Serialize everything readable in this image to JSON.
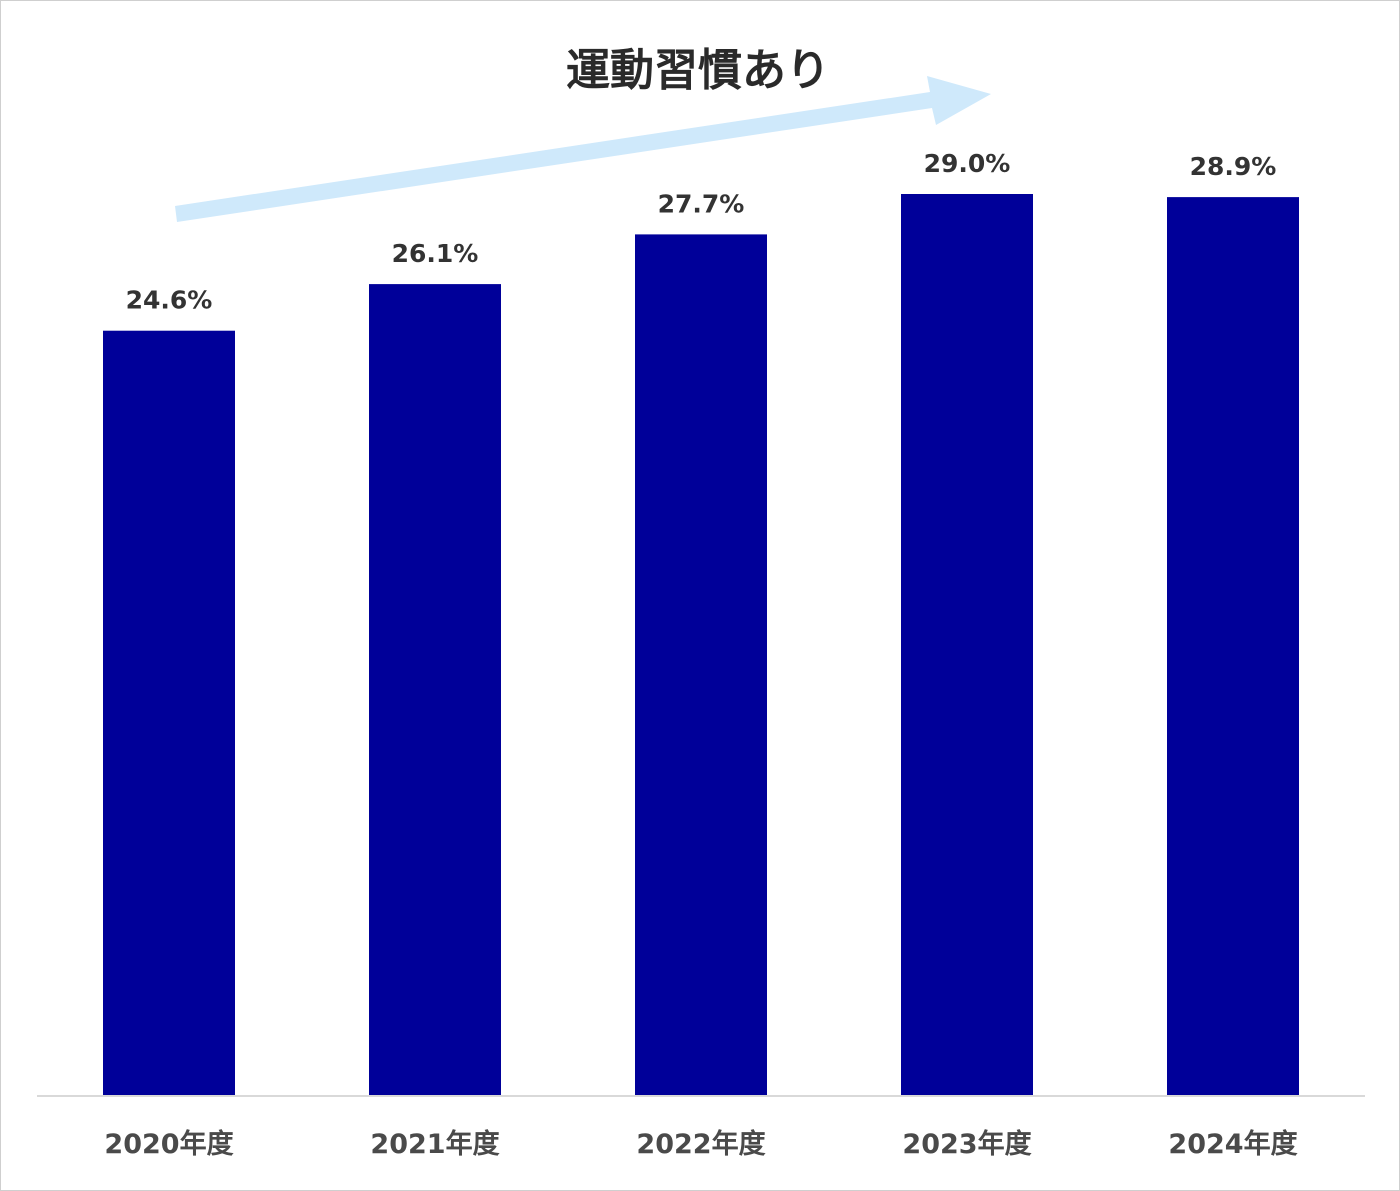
{
  "chart_data": {
    "type": "bar",
    "title": "",
    "annotation": "運動習慣あり",
    "categories": [
      "2020年度",
      "2021年度",
      "2022年度",
      "2023年度",
      "2024年度"
    ],
    "values": [
      24.6,
      26.1,
      27.7,
      29.0,
      28.9
    ],
    "value_labels": [
      "24.6%",
      "26.1%",
      "27.7%",
      "29.0%",
      "28.9%"
    ],
    "unit": "%",
    "xlabel": "",
    "ylabel": "",
    "ylim": [
      0,
      30.7
    ],
    "grid": false,
    "legend": "none",
    "colors": {
      "bar": "#000099",
      "arrow": "#cfe9fb",
      "axis": "#d9d9d9"
    }
  }
}
